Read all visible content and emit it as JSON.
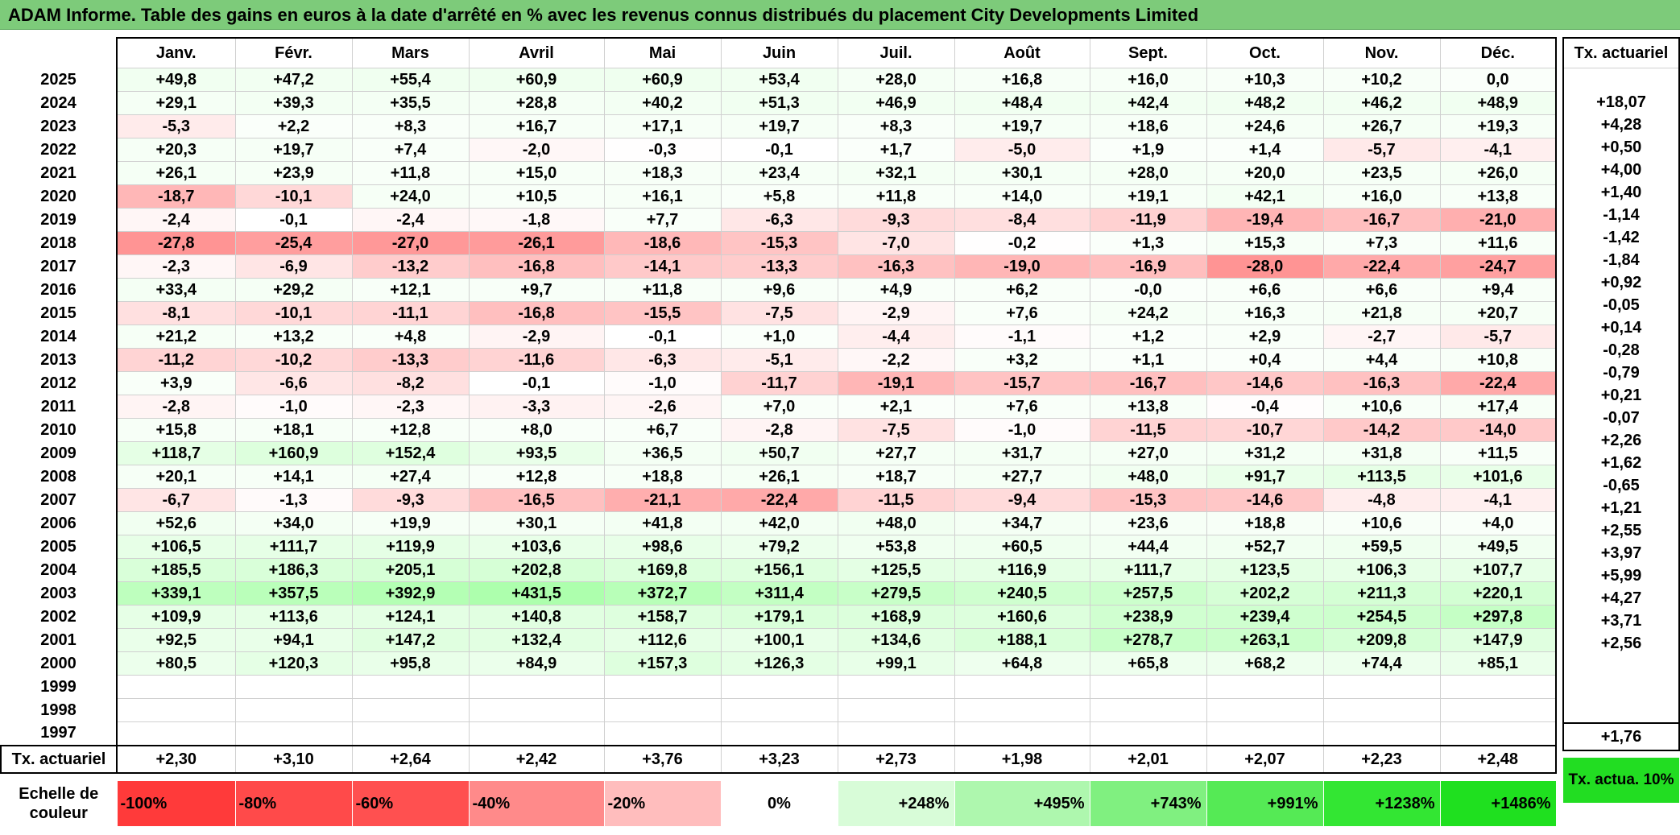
{
  "title": "ADAM Informe. Table des gains en euros à la date d'arrêté en % avec les revenus connus distribués du placement City Developments Limited",
  "months": [
    "Janv.",
    "Févr.",
    "Mars",
    "Avril",
    "Mai",
    "Juin",
    "Juil.",
    "Août",
    "Sept.",
    "Oct.",
    "Nov.",
    "Déc."
  ],
  "side_header": "Tx. actuariel",
  "rows": [
    {
      "year": "2025",
      "values": [
        "+49,8",
        "+47,2",
        "+55,4",
        "+60,9",
        "+60,9",
        "+53,4",
        "+28,0",
        "+16,8",
        "+16,0",
        "+10,3",
        "+10,2",
        "0,0"
      ],
      "rate": ""
    },
    {
      "year": "2024",
      "values": [
        "+29,1",
        "+39,3",
        "+35,5",
        "+28,8",
        "+40,2",
        "+51,3",
        "+46,9",
        "+48,4",
        "+42,4",
        "+48,2",
        "+46,2",
        "+48,9"
      ],
      "rate": "+18,07"
    },
    {
      "year": "2023",
      "values": [
        "-5,3",
        "+2,2",
        "+8,3",
        "+16,7",
        "+17,1",
        "+19,7",
        "+8,3",
        "+19,7",
        "+18,6",
        "+24,6",
        "+26,7",
        "+19,3"
      ],
      "rate": "+4,28"
    },
    {
      "year": "2022",
      "values": [
        "+20,3",
        "+19,7",
        "+7,4",
        "-2,0",
        "-0,3",
        "-0,1",
        "+1,7",
        "-5,0",
        "+1,9",
        "+1,4",
        "-5,7",
        "-4,1"
      ],
      "rate": "+0,50"
    },
    {
      "year": "2021",
      "values": [
        "+26,1",
        "+23,9",
        "+11,8",
        "+15,0",
        "+18,3",
        "+23,4",
        "+32,1",
        "+30,1",
        "+28,0",
        "+20,0",
        "+23,5",
        "+26,0"
      ],
      "rate": "+4,00"
    },
    {
      "year": "2020",
      "values": [
        "-18,7",
        "-10,1",
        "+24,0",
        "+10,5",
        "+16,1",
        "+5,8",
        "+11,8",
        "+14,0",
        "+19,1",
        "+42,1",
        "+16,0",
        "+13,8"
      ],
      "rate": "+1,40"
    },
    {
      "year": "2019",
      "values": [
        "-2,4",
        "-0,1",
        "-2,4",
        "-1,8",
        "+7,7",
        "-6,3",
        "-9,3",
        "-8,4",
        "-11,9",
        "-19,4",
        "-16,7",
        "-21,0"
      ],
      "rate": "-1,14"
    },
    {
      "year": "2018",
      "values": [
        "-27,8",
        "-25,4",
        "-27,0",
        "-26,1",
        "-18,6",
        "-15,3",
        "-7,0",
        "-0,2",
        "+1,3",
        "+15,3",
        "+7,3",
        "+11,6"
      ],
      "rate": "-1,42"
    },
    {
      "year": "2017",
      "values": [
        "-2,3",
        "-6,9",
        "-13,2",
        "-16,8",
        "-14,1",
        "-13,3",
        "-16,3",
        "-19,0",
        "-16,9",
        "-28,0",
        "-22,4",
        "-24,7"
      ],
      "rate": "-1,84"
    },
    {
      "year": "2016",
      "values": [
        "+33,4",
        "+29,2",
        "+12,1",
        "+9,7",
        "+11,8",
        "+9,6",
        "+4,9",
        "+6,2",
        "-0,0",
        "+6,6",
        "+6,6",
        "+9,4"
      ],
      "rate": "+0,92"
    },
    {
      "year": "2015",
      "values": [
        "-8,1",
        "-10,1",
        "-11,1",
        "-16,8",
        "-15,5",
        "-7,5",
        "-2,9",
        "+7,6",
        "+24,2",
        "+16,3",
        "+21,8",
        "+20,7"
      ],
      "rate": "-0,05"
    },
    {
      "year": "2014",
      "values": [
        "+21,2",
        "+13,2",
        "+4,8",
        "-2,9",
        "-0,1",
        "+1,0",
        "-4,4",
        "-1,1",
        "+1,2",
        "+2,9",
        "-2,7",
        "-5,7"
      ],
      "rate": "+0,14"
    },
    {
      "year": "2013",
      "values": [
        "-11,2",
        "-10,2",
        "-13,3",
        "-11,6",
        "-6,3",
        "-5,1",
        "-2,2",
        "+3,2",
        "+1,1",
        "+0,4",
        "+4,4",
        "+10,8"
      ],
      "rate": "-0,28"
    },
    {
      "year": "2012",
      "values": [
        "+3,9",
        "-6,6",
        "-8,2",
        "-0,1",
        "-1,0",
        "-11,7",
        "-19,1",
        "-15,7",
        "-16,7",
        "-14,6",
        "-16,3",
        "-22,4"
      ],
      "rate": "-0,79"
    },
    {
      "year": "2011",
      "values": [
        "-2,8",
        "-1,0",
        "-2,3",
        "-3,3",
        "-2,6",
        "+7,0",
        "+2,1",
        "+7,6",
        "+13,8",
        "-0,4",
        "+10,6",
        "+17,4"
      ],
      "rate": "+0,21"
    },
    {
      "year": "2010",
      "values": [
        "+15,8",
        "+18,1",
        "+12,8",
        "+8,0",
        "+6,7",
        "-2,8",
        "-7,5",
        "-1,0",
        "-11,5",
        "-10,7",
        "-14,2",
        "-14,0"
      ],
      "rate": "-0,07"
    },
    {
      "year": "2009",
      "values": [
        "+118,7",
        "+160,9",
        "+152,4",
        "+93,5",
        "+36,5",
        "+50,7",
        "+27,7",
        "+31,7",
        "+27,0",
        "+31,2",
        "+31,8",
        "+11,5"
      ],
      "rate": "+2,26"
    },
    {
      "year": "2008",
      "values": [
        "+20,1",
        "+14,1",
        "+27,4",
        "+12,8",
        "+18,8",
        "+26,1",
        "+18,7",
        "+27,7",
        "+48,0",
        "+91,7",
        "+113,5",
        "+101,6"
      ],
      "rate": "+1,62"
    },
    {
      "year": "2007",
      "values": [
        "-6,7",
        "-1,3",
        "-9,3",
        "-16,5",
        "-21,1",
        "-22,4",
        "-11,5",
        "-9,4",
        "-15,3",
        "-14,6",
        "-4,8",
        "-4,1"
      ],
      "rate": "-0,65"
    },
    {
      "year": "2006",
      "values": [
        "+52,6",
        "+34,0",
        "+19,9",
        "+30,1",
        "+41,8",
        "+42,0",
        "+48,0",
        "+34,7",
        "+23,6",
        "+18,8",
        "+10,6",
        "+4,0"
      ],
      "rate": "+1,21"
    },
    {
      "year": "2005",
      "values": [
        "+106,5",
        "+111,7",
        "+119,9",
        "+103,6",
        "+98,6",
        "+79,2",
        "+53,8",
        "+60,5",
        "+44,4",
        "+52,7",
        "+59,5",
        "+49,5"
      ],
      "rate": "+2,55"
    },
    {
      "year": "2004",
      "values": [
        "+185,5",
        "+186,3",
        "+205,1",
        "+202,8",
        "+169,8",
        "+156,1",
        "+125,5",
        "+116,9",
        "+111,7",
        "+123,5",
        "+106,3",
        "+107,7"
      ],
      "rate": "+3,97"
    },
    {
      "year": "2003",
      "values": [
        "+339,1",
        "+357,5",
        "+392,9",
        "+431,5",
        "+372,7",
        "+311,4",
        "+279,5",
        "+240,5",
        "+257,5",
        "+202,2",
        "+211,3",
        "+220,1"
      ],
      "rate": "+5,99"
    },
    {
      "year": "2002",
      "values": [
        "+109,9",
        "+113,6",
        "+124,1",
        "+140,8",
        "+158,7",
        "+179,1",
        "+168,9",
        "+160,6",
        "+238,9",
        "+239,4",
        "+254,5",
        "+297,8"
      ],
      "rate": "+4,27"
    },
    {
      "year": "2001",
      "values": [
        "+92,5",
        "+94,1",
        "+147,2",
        "+132,4",
        "+112,6",
        "+100,1",
        "+134,6",
        "+188,1",
        "+278,7",
        "+263,1",
        "+209,8",
        "+147,9"
      ],
      "rate": "+3,71"
    },
    {
      "year": "2000",
      "values": [
        "+80,5",
        "+120,3",
        "+95,8",
        "+84,9",
        "+157,3",
        "+126,3",
        "+99,1",
        "+64,8",
        "+65,8",
        "+68,2",
        "+74,4",
        "+85,1"
      ],
      "rate": "+2,56"
    },
    {
      "year": "1999",
      "values": [
        "",
        "",
        "",
        "",
        "",
        "",
        "",
        "",
        "",
        "",
        "",
        ""
      ],
      "rate": ""
    },
    {
      "year": "1998",
      "values": [
        "",
        "",
        "",
        "",
        "",
        "",
        "",
        "",
        "",
        "",
        "",
        ""
      ],
      "rate": ""
    },
    {
      "year": "1997",
      "values": [
        "",
        "",
        "",
        "",
        "",
        "",
        "",
        "",
        "",
        "",
        "",
        ""
      ],
      "rate": ""
    }
  ],
  "footer": {
    "label": "Tx. actuariel",
    "values": [
      "+2,30",
      "+3,10",
      "+2,64",
      "+2,42",
      "+3,76",
      "+3,23",
      "+2,73",
      "+1,98",
      "+2,01",
      "+2,07",
      "+2,23",
      "+2,48"
    ],
    "overall": "+1,76"
  },
  "scale": {
    "label": "Echelle de couleur",
    "steps": [
      {
        "label": "-100%",
        "color": "#ff3a3a"
      },
      {
        "label": "-80%",
        "color": "#ff4a4a"
      },
      {
        "label": "-60%",
        "color": "#ff5050"
      },
      {
        "label": "-40%",
        "color": "#ff8a8a"
      },
      {
        "label": "-20%",
        "color": "#ffbdbd"
      },
      {
        "label": "0%",
        "color": "#ffffff"
      },
      {
        "label": "+248%",
        "color": "#d8fcd8"
      },
      {
        "label": "+495%",
        "color": "#aef7ae"
      },
      {
        "label": "+743%",
        "color": "#80f080"
      },
      {
        "label": "+991%",
        "color": "#55ea55"
      },
      {
        "label": "+1238%",
        "color": "#33e633"
      },
      {
        "label": "+1486%",
        "color": "#1fe01f"
      }
    ],
    "side_label": "Tx. actua. 10%",
    "side_color": "#22dd22"
  }
}
